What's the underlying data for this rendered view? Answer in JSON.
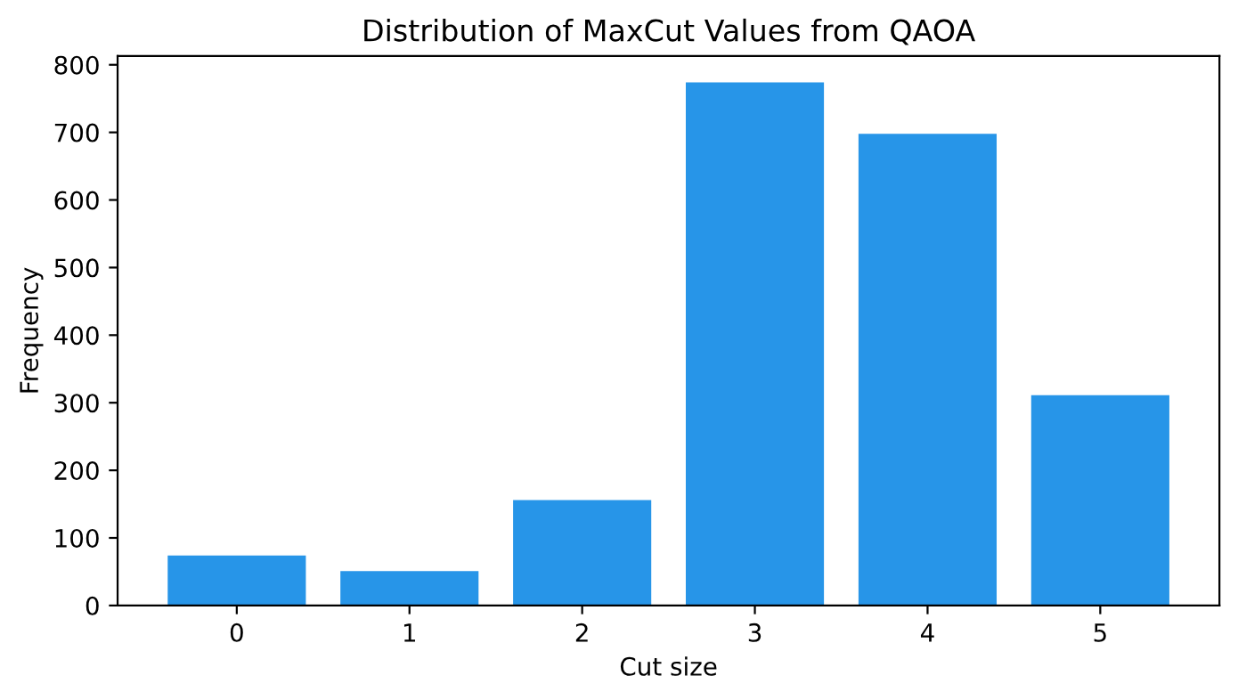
{
  "chart_data": {
    "type": "bar",
    "title": "Distribution of MaxCut Values from QAOA",
    "xlabel": "Cut size",
    "ylabel": "Frequency",
    "x": [
      0,
      1,
      2,
      3,
      4,
      5
    ],
    "values": [
      74,
      51,
      156,
      774,
      698,
      311
    ],
    "color": "#2795e8",
    "xlim": [
      -0.69,
      5.69
    ],
    "xticks": [
      0,
      1,
      2,
      3,
      4,
      5
    ],
    "ylim": [
      0,
      813
    ],
    "yticks": [
      0,
      100,
      200,
      300,
      400,
      500,
      600,
      700,
      800
    ],
    "grid": false
  }
}
